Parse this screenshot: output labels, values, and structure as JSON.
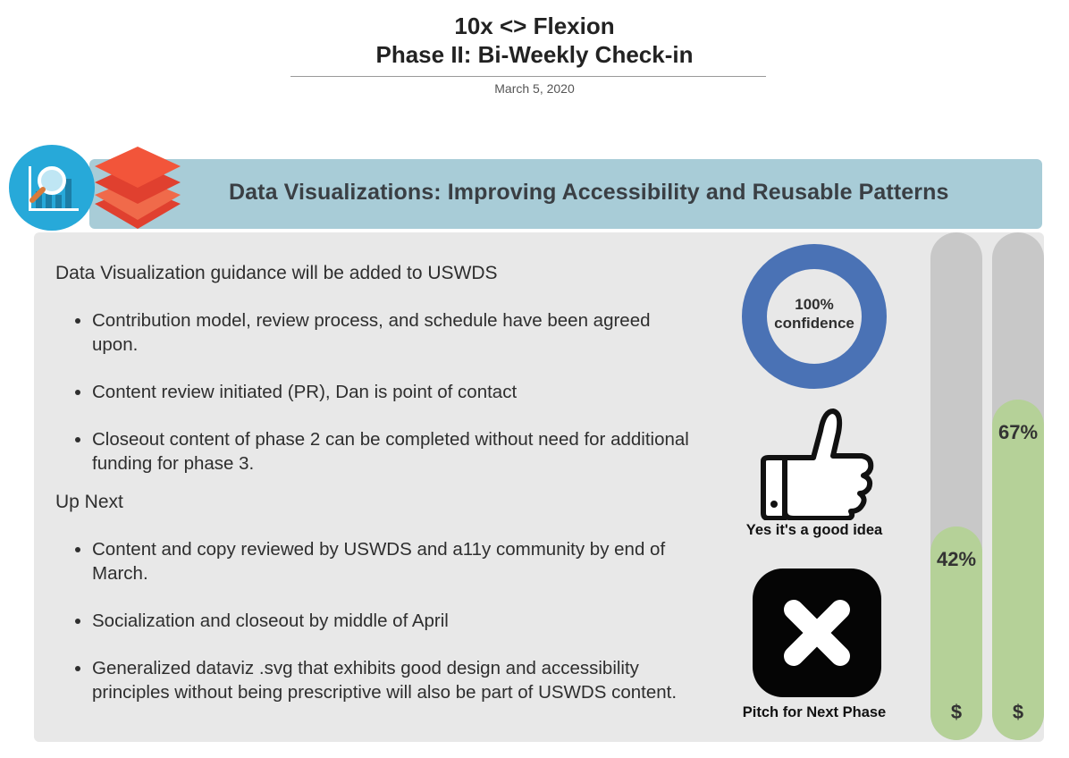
{
  "header": {
    "title_line1": "10x <> Flexion",
    "title_line2": "Phase II: Bi-Weekly Check-in",
    "date": "March 5, 2020"
  },
  "banner": {
    "title": "Data Visualizations: Improving Accessibility and Reusable Patterns",
    "icons": [
      "data-viz-magnifier-icon",
      "stacked-layers-icon"
    ],
    "color": "#a8ccd7"
  },
  "content": {
    "section1_title": "Data Visualization guidance will be added to USWDS",
    "section1_items": [
      "Contribution model, review process, and schedule have been agreed upon.",
      "Content review initiated (PR), Dan is point of contact",
      "Closeout content of phase 2 can be completed without need for additional funding for phase 3."
    ],
    "section2_title": "Up Next",
    "section2_items": [
      "Content and copy reviewed by USWDS and a11y community by end of March.",
      "Socialization and closeout by middle of April",
      "Generalized dataviz .svg that exhibits good design and accessibility principles without being prescriptive will also be part of USWDS content."
    ]
  },
  "indicators": {
    "confidence_line1": "100%",
    "confidence_line2": "confidence",
    "confidence_value": 100,
    "confidence_color": "#4a72b5",
    "thumb_label": "Yes it's a good idea",
    "x_label": "Pitch for Next Phase"
  },
  "budget_bars": [
    {
      "percent_label": "42%",
      "value": 42,
      "currency": "$"
    },
    {
      "percent_label": "67%",
      "value": 67,
      "currency": "$"
    }
  ],
  "colors": {
    "bar_track": "#c8c8c8",
    "bar_fill": "#b5d198",
    "panel": "#e8e8e8"
  }
}
